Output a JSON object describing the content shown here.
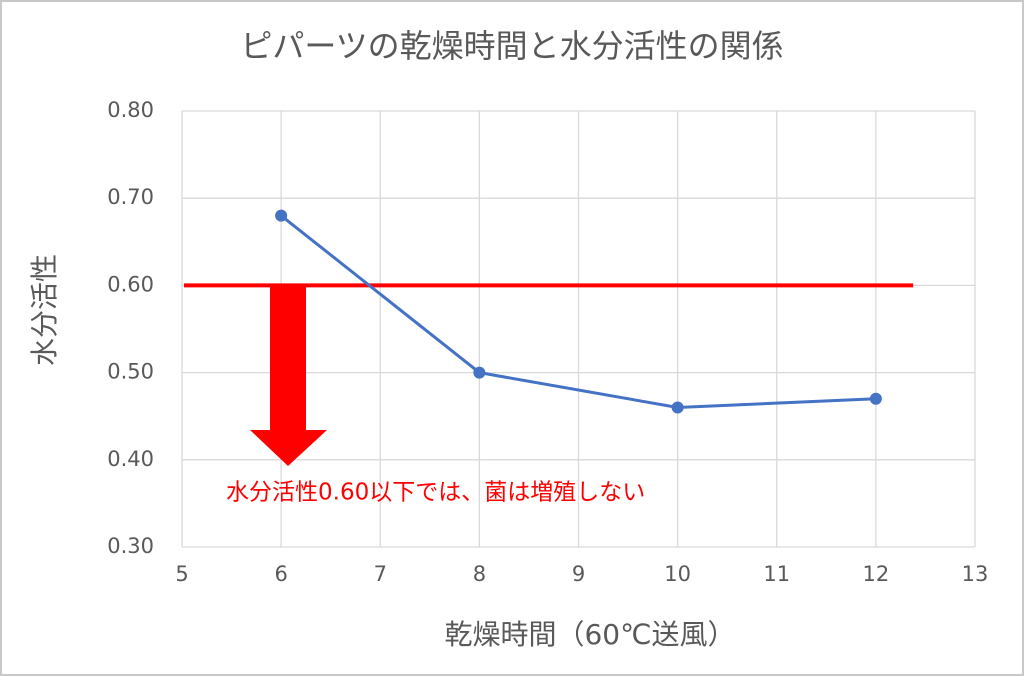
{
  "chart_data": {
    "type": "line",
    "title": "ピパーツの乾燥時間と水分活性の関係",
    "x_label": "乾燥時間（60℃送風）",
    "y_label": "水分活性",
    "annotation": "水分活性0.60以下では、菌は増殖しない",
    "annotation_color": "#ff0000",
    "x": [
      6,
      8,
      10,
      12
    ],
    "series": [
      {
        "name": "水分活性",
        "color": "#4472c4",
        "values": [
          0.68,
          0.5,
          0.46,
          0.47
        ]
      }
    ],
    "reference_line": {
      "value": 0.6,
      "color": "#ff0000"
    },
    "xlim": [
      5,
      13
    ],
    "xticks": [
      5,
      6,
      7,
      8,
      9,
      10,
      11,
      12,
      13
    ],
    "ylim": [
      0.3,
      0.8
    ],
    "yticks": [
      {
        "value": 0.3,
        "label": "0.30"
      },
      {
        "value": 0.4,
        "label": "0.40"
      },
      {
        "value": 0.5,
        "label": "0.50"
      },
      {
        "value": 0.6,
        "label": "0.60"
      },
      {
        "value": 0.7,
        "label": "0.70"
      },
      {
        "value": 0.8,
        "label": "0.80"
      }
    ],
    "grid": true
  }
}
